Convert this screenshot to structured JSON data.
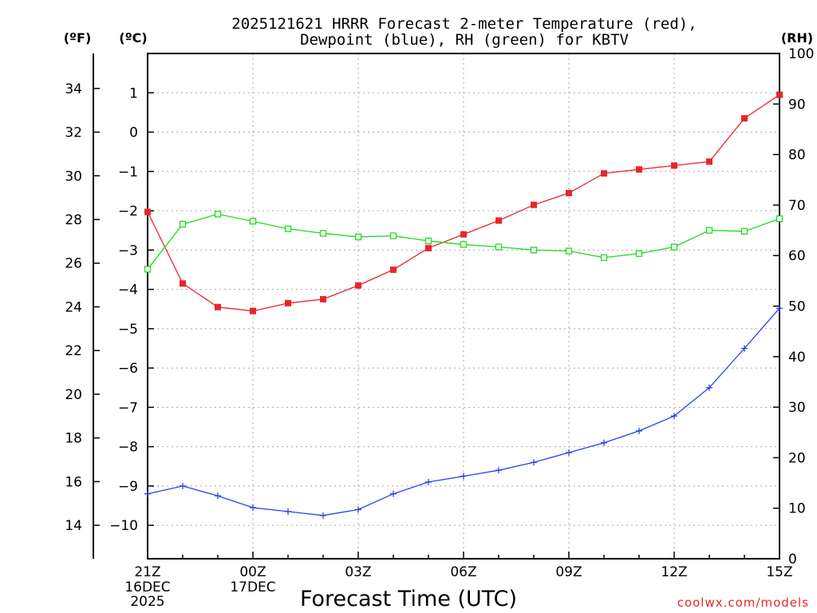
{
  "chart_data": {
    "type": "line",
    "title": "2025121621 HRRR Forecast 2-meter Temperature (red),",
    "subtitle": "Dewpoint (blue), RH (green) for KBTV",
    "xlabel": "Forecast Time (UTC)",
    "credit": "coolwx.com/models",
    "grid": true,
    "axis_units": {
      "left_f": "(ºF)",
      "left_c": "(ºC)",
      "right_rh": "(RH)"
    },
    "x_forecast_hours": [
      0,
      1,
      2,
      3,
      4,
      5,
      6,
      7,
      8,
      9,
      10,
      11,
      12,
      13,
      14,
      15,
      16,
      17,
      18
    ],
    "x_ticks": [
      {
        "hour": 0,
        "label": "21Z",
        "sub1": "16DEC",
        "sub2": "2025"
      },
      {
        "hour": 3,
        "label": "00Z",
        "sub1": "17DEC",
        "sub2": ""
      },
      {
        "hour": 6,
        "label": "03Z",
        "sub1": "",
        "sub2": ""
      },
      {
        "hour": 9,
        "label": "06Z",
        "sub1": "",
        "sub2": ""
      },
      {
        "hour": 12,
        "label": "09Z",
        "sub1": "",
        "sub2": ""
      },
      {
        "hour": 15,
        "label": "12Z",
        "sub1": "",
        "sub2": ""
      },
      {
        "hour": 18,
        "label": "15Z",
        "sub1": "",
        "sub2": ""
      }
    ],
    "left_axis_c": {
      "range": [
        -10.85,
        2.0
      ],
      "ticks": [
        1,
        0,
        -1,
        -2,
        -3,
        -4,
        -5,
        -6,
        -7,
        -8,
        -9,
        -10
      ],
      "tick_labels": [
        "1",
        "0",
        "−1",
        "−2",
        "−3",
        "−4",
        "−5",
        "−6",
        "−7",
        "−8",
        "−9",
        "−10"
      ]
    },
    "left_axis_f": {
      "range": [
        12.47,
        35.6
      ],
      "ticks": [
        34,
        32,
        30,
        28,
        26,
        24,
        22,
        20,
        18,
        16,
        14
      ],
      "tick_labels": [
        "34",
        "32",
        "30",
        "28",
        "26",
        "24",
        "22",
        "20",
        "18",
        "16",
        "14"
      ]
    },
    "right_axis_rh": {
      "range": [
        0,
        100
      ],
      "ticks": [
        100,
        90,
        80,
        70,
        60,
        50,
        40,
        30,
        20,
        10,
        0
      ],
      "tick_labels": [
        "100",
        "90",
        "80",
        "70",
        "60",
        "50",
        "40",
        "30",
        "20",
        "10",
        "0"
      ]
    },
    "series": [
      {
        "name": "2-meter Temperature",
        "units": "degC",
        "color": "#e8262a",
        "marker": "filled-square",
        "values": [
          -2.03,
          -3.85,
          -4.45,
          -4.55,
          -4.35,
          -4.25,
          -3.9,
          -3.5,
          -2.95,
          -2.6,
          -2.25,
          -1.85,
          -1.55,
          -1.05,
          -0.95,
          -0.85,
          -0.75,
          0.35,
          0.95
        ]
      },
      {
        "name": "Dewpoint",
        "units": "degC",
        "color": "#2840e8",
        "marker": "plus",
        "values": [
          -9.2,
          -9.0,
          -9.25,
          -9.55,
          -9.65,
          -9.75,
          -9.6,
          -9.2,
          -8.9,
          -8.75,
          -8.6,
          -8.4,
          -8.15,
          -7.9,
          -7.6,
          -7.22,
          -6.5,
          -5.5,
          -4.48
        ]
      },
      {
        "name": "RH",
        "units": "percent",
        "color": "#20dc20",
        "marker": "open-square",
        "values": [
          57.3,
          66.2,
          68.2,
          66.8,
          65.3,
          64.4,
          63.7,
          63.9,
          62.9,
          62.2,
          61.7,
          61.1,
          60.9,
          59.6,
          60.4,
          61.7,
          65.0,
          64.8,
          67.3
        ]
      }
    ]
  }
}
